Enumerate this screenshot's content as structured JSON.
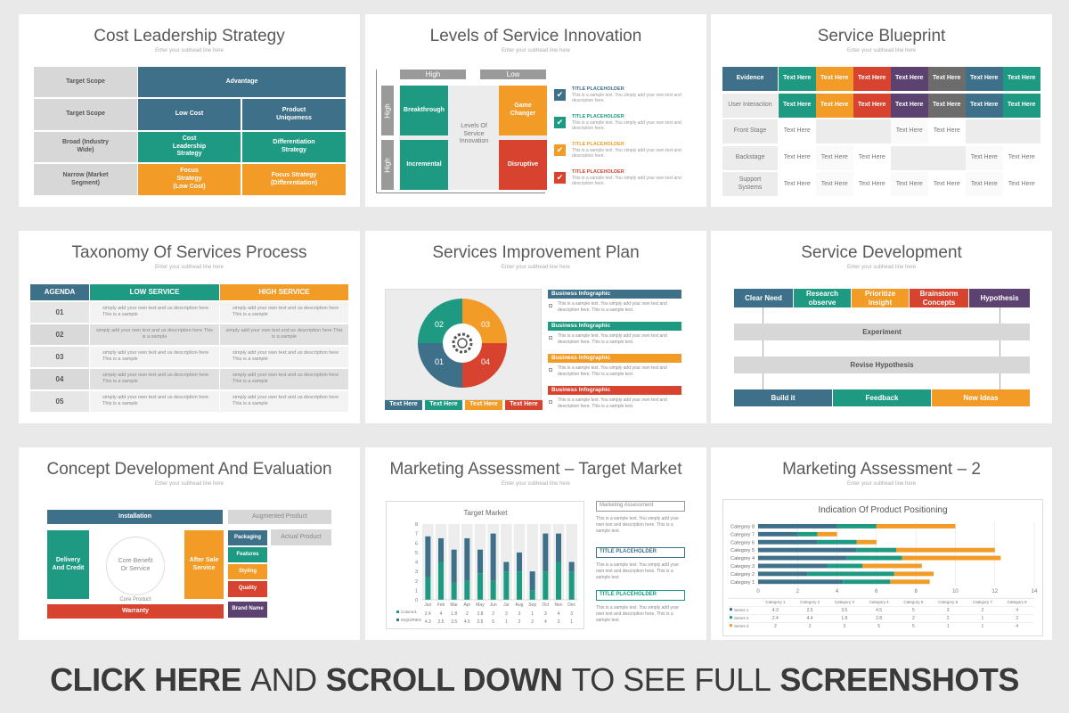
{
  "sub": "Enter your subhead line here",
  "banner": {
    "b1": "CLICK HERE",
    "n1": "AND",
    "b2": "SCROLL DOWN",
    "n2": "TO SEE FULL",
    "b3": "SCREENSHOTS"
  },
  "colors": {
    "blue": "#3e7189",
    "teal": "#1e9a82",
    "orange": "#f29b26",
    "red": "#d8432f",
    "purple": "#5c4270",
    "gray": "#d7d7d7"
  },
  "s1": {
    "title": "Cost Leadership Strategy",
    "r1": {
      "label": "Target Scope",
      "head": "Advantage"
    },
    "r2": {
      "label": "Target Scope",
      "a": "Low Cost",
      "b": "Product Uniqueness"
    },
    "r3": {
      "label": "Broad (Industry Wide)",
      "a": "Cost Leadership Strategy",
      "b": "Differentiation Strategy"
    },
    "r4": {
      "label": "Narrow (Market Segment)",
      "a": "Focus Strategy (Low Cost)",
      "b": "Focus Strategy (Differentiation)"
    }
  },
  "s2": {
    "title": "Levels of Service Innovation",
    "high1": "High",
    "low": "Low",
    "high2": "High",
    "high3": "High",
    "q1": "Breakthrough",
    "q2": "Game Changer",
    "q3": "Incremental",
    "q4": "Disruptive",
    "center": "Levels Of Service Innovation",
    "items": [
      {
        "t": "TITLE PLACEHOLDER",
        "d": "This is a sample text. You simply add your own text and description here."
      },
      {
        "t": "TITLE PLACEHOLDER",
        "d": "This is a sample text. You simply add your own text and description here."
      },
      {
        "t": "TITLE PLACEHOLDER",
        "d": "This is a sample text. You simply add your own text and description here."
      },
      {
        "t": "TITLE PLACEHOLDER",
        "d": "This is a sample text. You simply add your own text and description here."
      }
    ]
  },
  "s3": {
    "title": "Service Blueprint",
    "th": "Text Here",
    "rows": [
      "Evidence",
      "User Interaction",
      "Front Stage",
      "Backstage",
      "Support Systems"
    ]
  },
  "s4": {
    "title": "Taxonomy Of Services Process",
    "h1": "AGENDA",
    "h2": "LOW SERVICE",
    "h3": "HIGH SERVICE",
    "rows": [
      "01",
      "02",
      "03",
      "04",
      "05"
    ],
    "txt": "simply add your own text and us description here This is a sample"
  },
  "s5": {
    "title": "Services Improvement Plan",
    "n1": "02",
    "n2": "03",
    "n3": "01",
    "n4": "04",
    "btn": "Text Here",
    "info": "Business Infographic",
    "d": "This is a sample text. You simply add your own text and description here. This is a sample text."
  },
  "s6": {
    "title": "Service Development",
    "b1": "Clear Need",
    "b2": "Research observe",
    "b3": "Prioritize insight",
    "b4": "Brainstorm Concepts",
    "b5": "Hypothesis",
    "exp": "Experiment",
    "rev": "Revise Hypothesis",
    "f1": "Build it",
    "f2": "Feedback",
    "f3": "New Ideas"
  },
  "s7": {
    "title": "Concept Development And Evaluation",
    "install": "Installation",
    "aug": "Augmented Product",
    "actual": "Actual Product",
    "delivery": "Delivery And Credit",
    "core": "Core Benefit Or Service",
    "after": "After Sale Service",
    "coreprod": "Core Product",
    "warranty": "Warranty",
    "p1": "Packaging",
    "p2": "Features",
    "p3": "Styling",
    "p4": "Quality",
    "p5": "Brand Name"
  },
  "s8": {
    "title": "Marketing Assessment – Target Market",
    "chart_data": {
      "type": "bar",
      "title": "Target Market",
      "categories": [
        "Jan",
        "Feb",
        "Mar",
        "Apr",
        "May",
        "Jun",
        "Jul",
        "Aug",
        "Sep",
        "Oct",
        "Nov",
        "Dec"
      ],
      "series": [
        {
          "name": "Column1",
          "values": [
            2.4,
            4,
            1.8,
            2,
            2.8,
            2,
            3,
            3,
            1,
            3,
            4,
            3
          ]
        },
        {
          "name": "INQUIRIES",
          "values": [
            4.3,
            2.5,
            3.5,
            4.5,
            2.5,
            5,
            1,
            2,
            2,
            4,
            3,
            1
          ]
        }
      ],
      "ylim": [
        0,
        8
      ],
      "yticks": [
        0,
        1,
        2,
        3,
        4,
        5,
        6,
        7,
        8
      ]
    },
    "legend": [
      "Column1",
      "INQUIRIES"
    ],
    "boxes": [
      {
        "t": "Marketing Assessment",
        "d": "This is a sample text. You simply add your own text and description here. This is a sample text."
      },
      {
        "t": "TITLE PLACEHOLDER",
        "d": "This is a sample text. You simply add your own text and description here. This is a sample text."
      },
      {
        "t": "TITLE PLACEHOLDER",
        "d": "This is a sample text. You simply add your own text and description here. This is a sample text."
      }
    ]
  },
  "s9": {
    "title": "Marketing Assessment – 2",
    "chart_data": {
      "type": "bar",
      "orientation": "horizontal",
      "stacked": true,
      "title": "Indication Of Product Positioning",
      "categories": [
        "Category 1",
        "Category 2",
        "Category 3",
        "Category 4",
        "Category 5",
        "Category 6",
        "Category 7",
        "Category 8"
      ],
      "series": [
        {
          "name": "Series 1",
          "values": [
            4.3,
            2.5,
            3.5,
            4.5,
            5,
            3,
            2,
            4
          ]
        },
        {
          "name": "Series 2",
          "values": [
            2.4,
            4.4,
            1.8,
            2.8,
            2,
            2,
            1,
            2
          ]
        },
        {
          "name": "Series 3",
          "values": [
            2,
            2,
            3,
            5,
            5,
            1,
            1,
            4
          ]
        }
      ],
      "xlim": [
        0,
        14
      ],
      "xticks": [
        0,
        2,
        4,
        6,
        8,
        10,
        12,
        14
      ]
    },
    "table": {
      "cats": [
        "Category 1",
        "Category 2",
        "Category 3",
        "Category 4",
        "Category 5",
        "Category 6",
        "Category 7",
        "Category 8"
      ],
      "rows": [
        {
          "name": "Series 1",
          "v": [
            "4.3",
            "2.5",
            "3.5",
            "4.5",
            "5",
            "3",
            "2",
            "4"
          ]
        },
        {
          "name": "Series 2",
          "v": [
            "2.4",
            "4.4",
            "1.8",
            "2.8",
            "2",
            "2",
            "1",
            "2"
          ]
        },
        {
          "name": "Series 3",
          "v": [
            "2",
            "2",
            "3",
            "5",
            "5",
            "1",
            "1",
            "4"
          ]
        }
      ]
    }
  }
}
